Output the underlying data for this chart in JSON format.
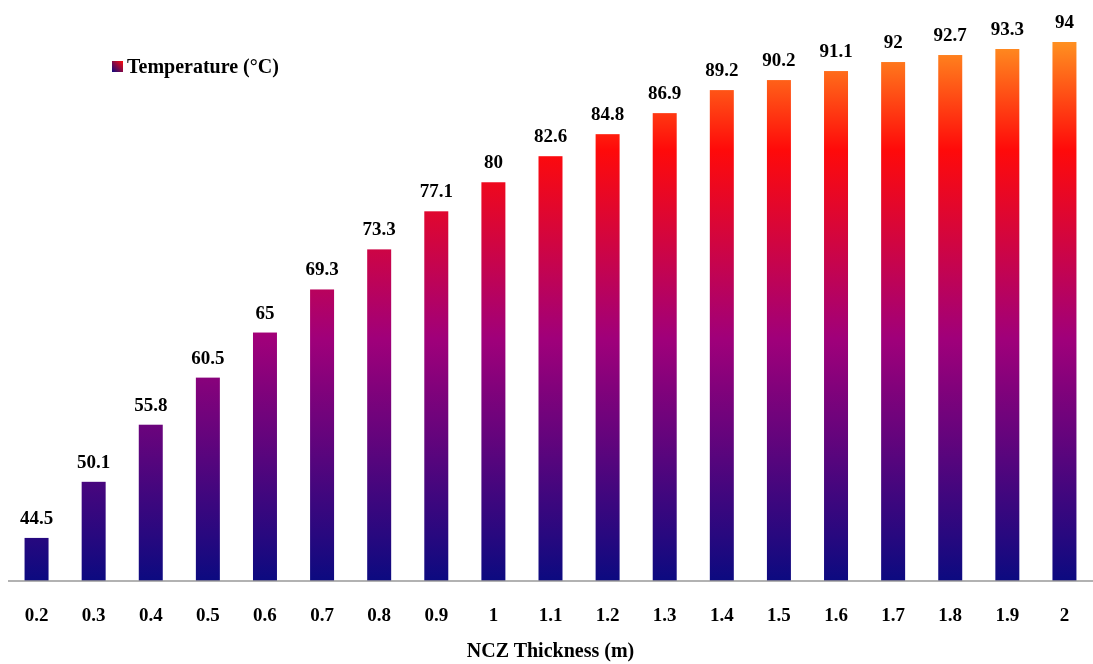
{
  "chart_data": {
    "type": "bar",
    "xlabel": "NCZ Thickness (m)",
    "categories": [
      "0.2",
      "0.3",
      "0.4",
      "0.5",
      "0.6",
      "0.7",
      "0.8",
      "0.9",
      "1",
      "1.1",
      "1.2",
      "1.3",
      "1.4",
      "1.5",
      "1.6",
      "1.7",
      "1.8",
      "1.9",
      "2"
    ],
    "series": [
      {
        "name": "Temperature (°C)",
        "values": [
          44.5,
          50.1,
          55.8,
          60.5,
          65,
          69.3,
          73.3,
          77.1,
          80,
          82.6,
          84.8,
          86.9,
          89.2,
          90.2,
          91.1,
          92,
          92.7,
          93.3,
          94
        ]
      }
    ],
    "ylim": [
      40.2,
      94
    ],
    "data_labels": true,
    "legend": "top left",
    "grid": false
  }
}
